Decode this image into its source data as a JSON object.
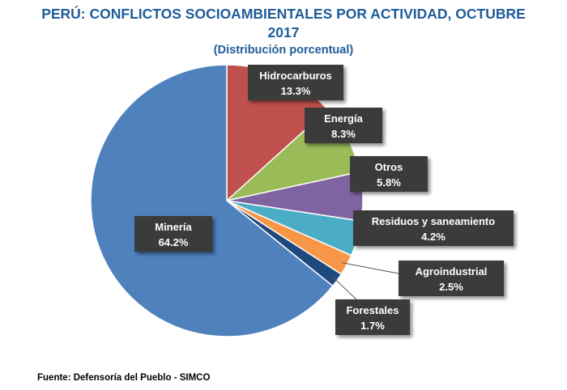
{
  "chart_data": {
    "type": "pie",
    "title_line1": "PERÚ: CONFLICTOS SOCIOAMBIENTALES POR ACTIVIDAD, OCTUBRE",
    "title_line2": "2017",
    "subtitle": "(Distribución porcentual)",
    "slices": [
      {
        "label": "Hidrocarburos",
        "value": 13.3,
        "display": "13.3%",
        "color": "#C0504D"
      },
      {
        "label": "Energía",
        "value": 8.3,
        "display": "8.3%",
        "color": "#9BBB59"
      },
      {
        "label": "Otros",
        "value": 5.8,
        "display": "5.8%",
        "color": "#8064A2"
      },
      {
        "label": "Residuos y saneamiento",
        "value": 4.2,
        "display": "4.2%",
        "color": "#4BACC6"
      },
      {
        "label": "Agroindustrial",
        "value": 2.5,
        "display": "2.5%",
        "color": "#F79646"
      },
      {
        "label": "Forestales",
        "value": 1.7,
        "display": "1.7%",
        "color": "#1F497D"
      },
      {
        "label": "Minería",
        "value": 64.2,
        "display": "64.2%",
        "color": "#4F81BD"
      }
    ],
    "source": "Fuente: Defensoría del Pueblo - SIMCO"
  }
}
